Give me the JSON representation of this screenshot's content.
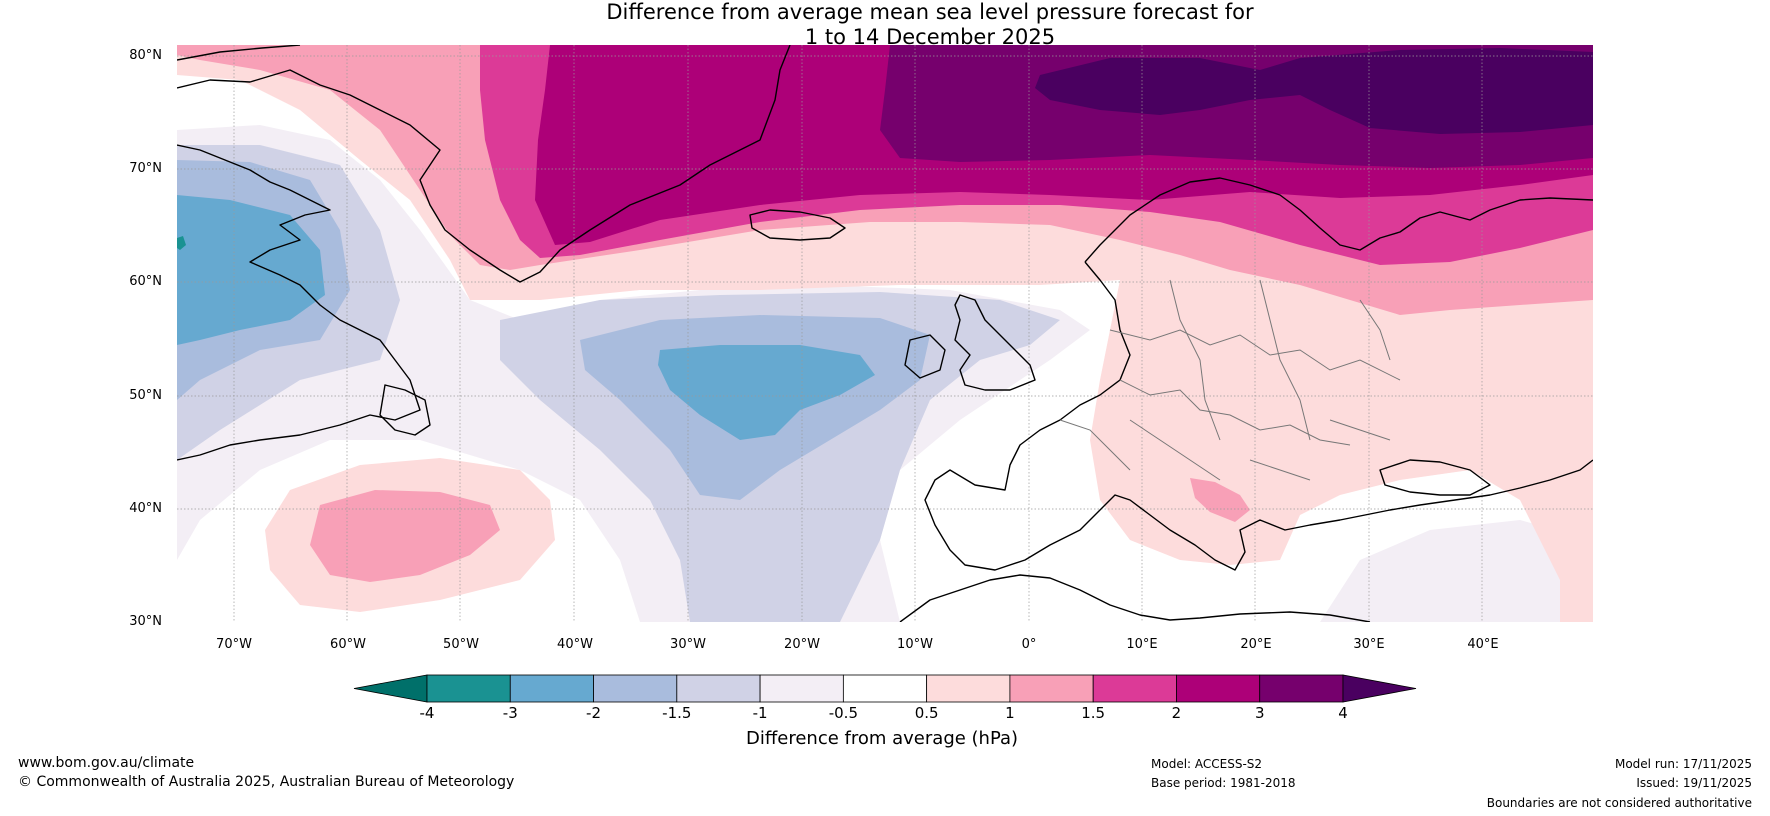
{
  "title": {
    "line1": "Difference from average mean sea level pressure forecast for",
    "line2": "1 to 14 December 2025"
  },
  "map": {
    "lat_labels": [
      "80°N",
      "70°N",
      "60°N",
      "50°N",
      "40°N",
      "30°N"
    ],
    "lon_labels": [
      "70°W",
      "60°W",
      "50°W",
      "40°W",
      "30°W",
      "20°W",
      "10°W",
      "0°",
      "10°E",
      "20°E",
      "30°E",
      "40°E"
    ]
  },
  "colorbar": {
    "title": "Difference from average (hPa)",
    "ticks": [
      "-4",
      "-3",
      "-2",
      "-1.5",
      "-1",
      "-0.5",
      "0.5",
      "1",
      "1.5",
      "2",
      "3",
      "4"
    ],
    "colors": [
      "#1a9292",
      "#66a9d0",
      "#a9bcdd",
      "#d0d2e6",
      "#f3eef5",
      "#ffffff",
      "#fddcdc",
      "#f8a0b7",
      "#dc3a97",
      "#ad0078",
      "#76006d"
    ],
    "under_color": "#00706a",
    "over_color": "#4a0060"
  },
  "footer": {
    "website": "www.bom.gov.au/climate",
    "copyright": "© Commonwealth of Australia 2025, Australian Bureau of Meteorology",
    "model": "Model: ACCESS-S2",
    "base_period": "Base period: 1981-2018",
    "model_run": "Model run: 17/11/2025",
    "issued": "Issued: 19/11/2025",
    "disclaimer": "Boundaries are not considered authoritative"
  }
}
